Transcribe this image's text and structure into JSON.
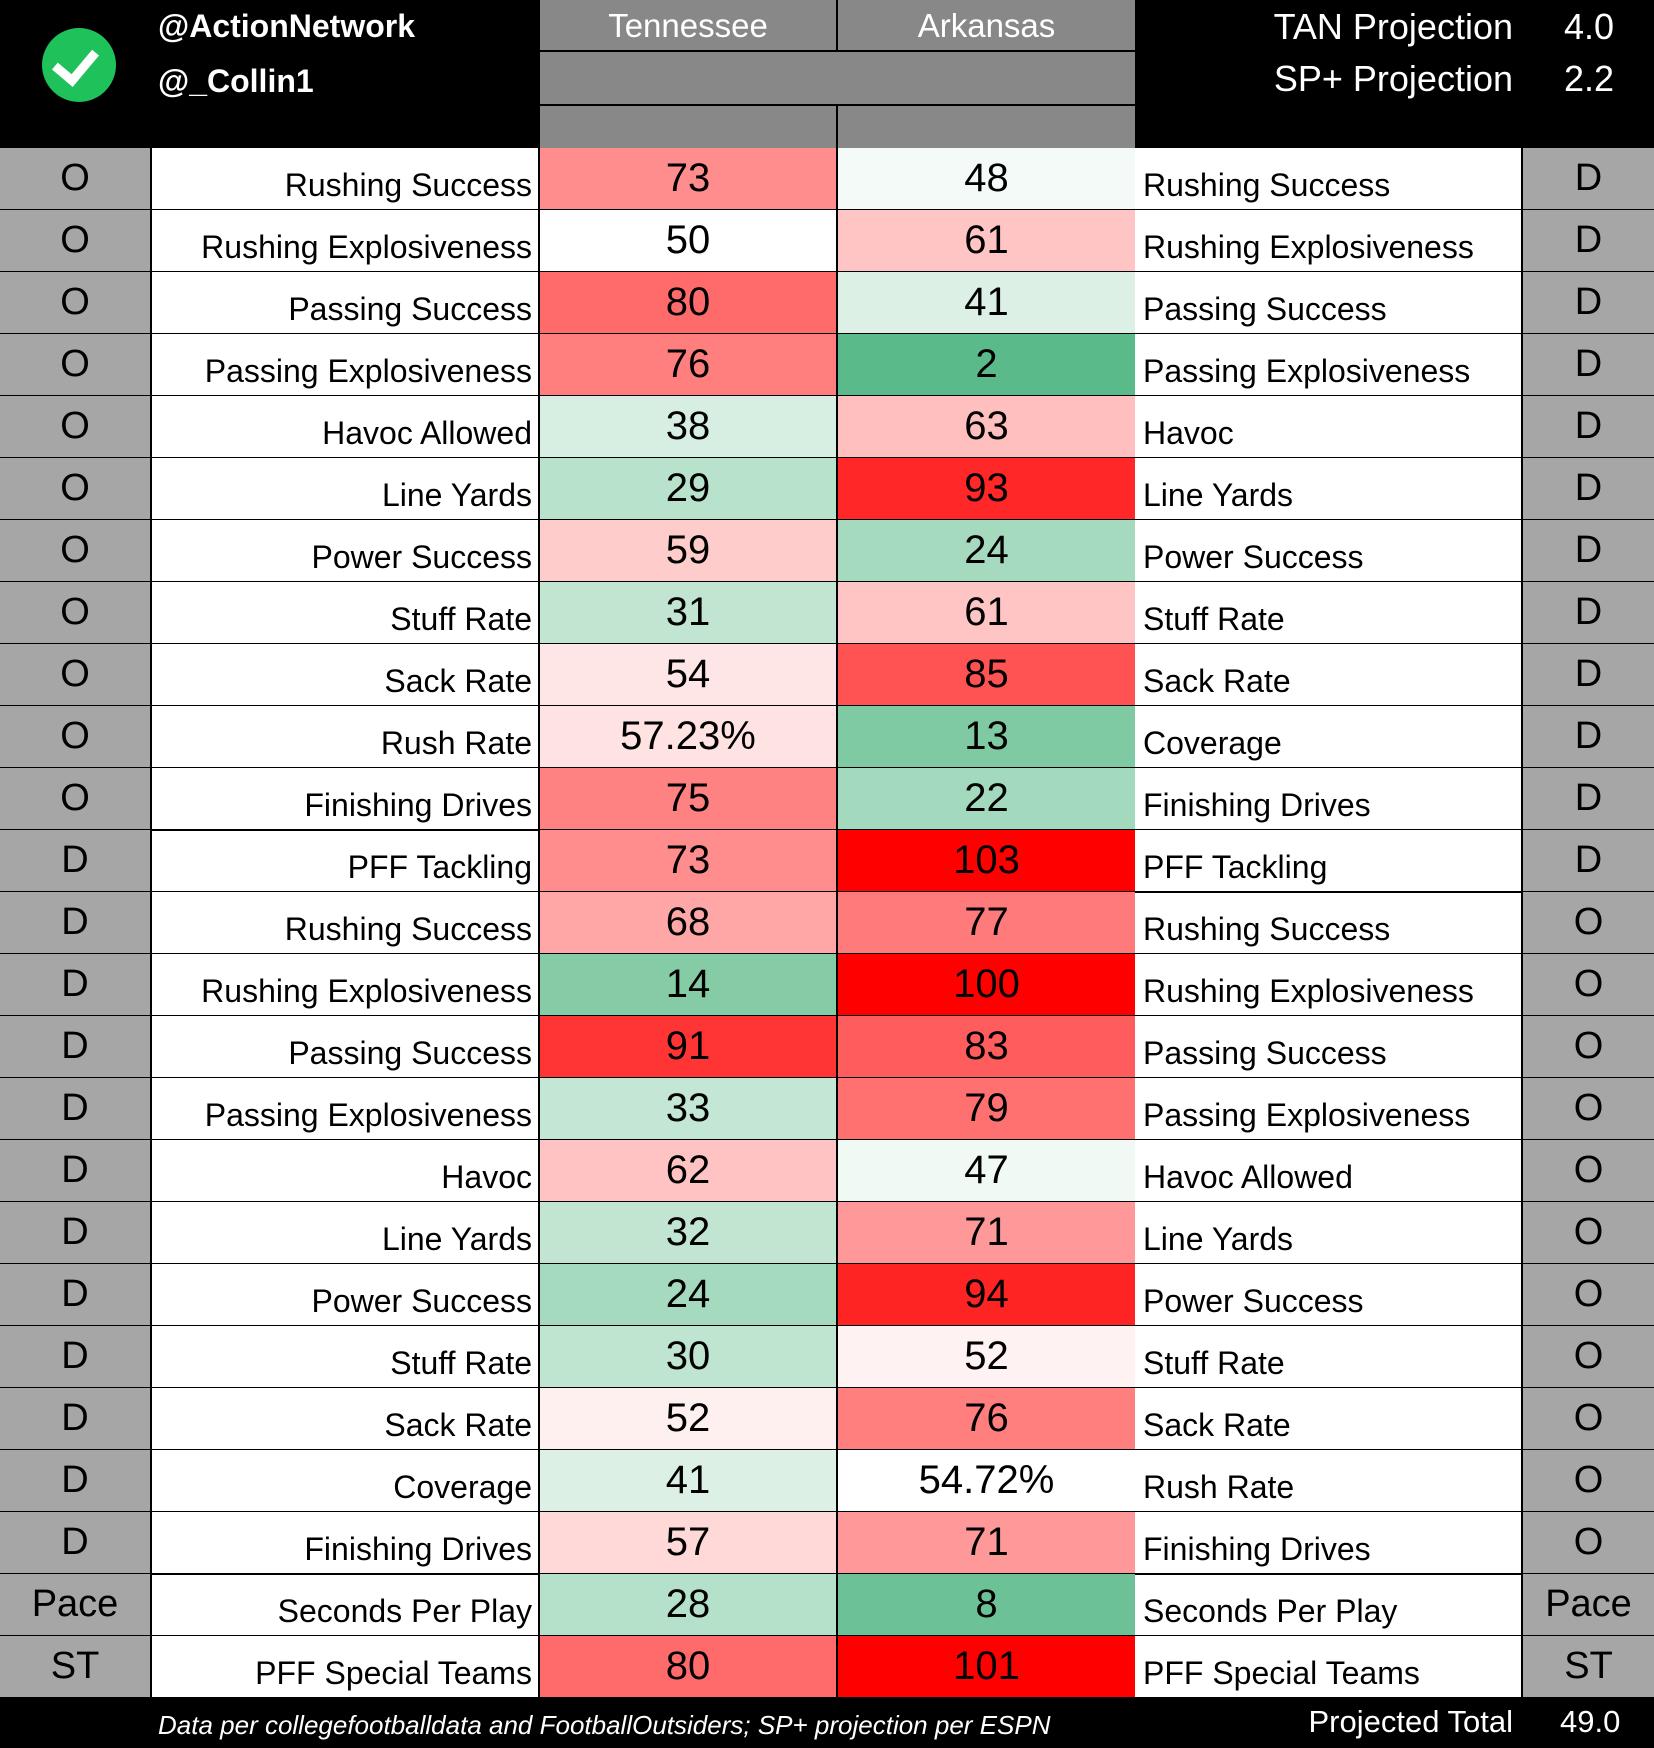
{
  "header": {
    "handles": [
      "@ActionNetwork",
      "@_Collin1"
    ],
    "team_left": "Tennessee",
    "team_right": "Arkansas",
    "projections": [
      {
        "label": "TAN Projection",
        "value": "4.0"
      },
      {
        "label": "SP+ Projection",
        "value": "2.2"
      }
    ]
  },
  "rows": [
    {
      "ls": "O",
      "ll": "Rushing Success",
      "tv": "73",
      "tc": "#ff8d8d",
      "av": "48",
      "ac": "#f4faf7",
      "rl": "Rushing Success",
      "rs": "D"
    },
    {
      "ls": "O",
      "ll": "Rushing Explosiveness",
      "tv": "50",
      "tc": "#ffffff",
      "av": "61",
      "ac": "#ffc5c5",
      "rl": "Rushing Explosiveness",
      "rs": "D"
    },
    {
      "ls": "O",
      "ll": "Passing Success",
      "tv": "80",
      "tc": "#ff6b6b",
      "av": "41",
      "ac": "#ddf0e6",
      "rl": "Passing Success",
      "rs": "D"
    },
    {
      "ls": "O",
      "ll": "Passing Explosiveness",
      "tv": "76",
      "tc": "#ff7e7e",
      "av": "2",
      "ac": "#5aba8a",
      "rl": "Passing Explosiveness",
      "rs": "D"
    },
    {
      "ls": "O",
      "ll": "Havoc Allowed",
      "tv": "38",
      "tc": "#d7efe2",
      "av": "63",
      "ac": "#ffbfbf",
      "rl": "Havoc",
      "rs": "D"
    },
    {
      "ls": "O",
      "ll": "Line Yards",
      "tv": "29",
      "tc": "#b8e2cc",
      "av": "93",
      "ac": "#ff2727",
      "rl": "Line Yards",
      "rs": "D"
    },
    {
      "ls": "O",
      "ll": "Power Success",
      "tv": "59",
      "tc": "#ffcccc",
      "av": "24",
      "ac": "#a6dabe",
      "rl": "Power Success",
      "rs": "D"
    },
    {
      "ls": "O",
      "ll": "Stuff Rate",
      "tv": "31",
      "tc": "#c2e5d2",
      "av": "61",
      "ac": "#ffc5c5",
      "rl": "Stuff Rate",
      "rs": "D"
    },
    {
      "ls": "O",
      "ll": "Sack Rate",
      "tv": "54",
      "tc": "#ffe6e6",
      "av": "85",
      "ac": "#ff5252",
      "rl": "Sack Rate",
      "rs": "D"
    },
    {
      "ls": "O",
      "ll": "Rush Rate",
      "tv": "57.23%",
      "tc": "#ffe3e3",
      "av": "13",
      "ac": "#7fcaa3",
      "rl": "Coverage",
      "rs": "D"
    },
    {
      "ls": "O",
      "ll": "Finishing Drives",
      "tv": "75",
      "tc": "#ff8282",
      "av": "22",
      "ac": "#a3d9bc",
      "rl": "Finishing Drives",
      "rs": "D"
    },
    {
      "ls": "D",
      "ll": "PFF Tackling",
      "tv": "73",
      "tc": "#ff8d8d",
      "av": "103",
      "ac": "#ff0000",
      "rl": "PFF Tackling",
      "rs": "D"
    },
    {
      "ls": "D",
      "ll": "Rushing Success",
      "tv": "68",
      "tc": "#ffa6a6",
      "av": "77",
      "ac": "#ff7a7a",
      "rl": "Rushing Success",
      "rs": "O"
    },
    {
      "ls": "D",
      "ll": "Rushing Explosiveness",
      "tv": "14",
      "tc": "#85cca6",
      "av": "100",
      "ac": "#ff0000",
      "rl": "Rushing Explosiveness",
      "rs": "O"
    },
    {
      "ls": "D",
      "ll": "Passing Success",
      "tv": "91",
      "tc": "#ff3434",
      "av": "83",
      "ac": "#ff5d5d",
      "rl": "Passing Success",
      "rs": "O"
    },
    {
      "ls": "D",
      "ll": "Passing Explosiveness",
      "tv": "33",
      "tc": "#c4e6d4",
      "av": "79",
      "ac": "#ff7171",
      "rl": "Passing Explosiveness",
      "rs": "O"
    },
    {
      "ls": "D",
      "ll": "Havoc",
      "tv": "62",
      "tc": "#ffc3c3",
      "av": "47",
      "ac": "#f0f9f4",
      "rl": "Havoc Allowed",
      "rs": "O"
    },
    {
      "ls": "D",
      "ll": "Line Yards",
      "tv": "32",
      "tc": "#c2e5d2",
      "av": "71",
      "ac": "#ff9898",
      "rl": "Line Yards",
      "rs": "O"
    },
    {
      "ls": "D",
      "ll": "Power Success",
      "tv": "24",
      "tc": "#a6dabe",
      "av": "94",
      "ac": "#ff2424",
      "rl": "Power Success",
      "rs": "O"
    },
    {
      "ls": "D",
      "ll": "Stuff Rate",
      "tv": "30",
      "tc": "#bfe4d0",
      "av": "52",
      "ac": "#fff2f2",
      "rl": "Stuff Rate",
      "rs": "O"
    },
    {
      "ls": "D",
      "ll": "Sack Rate",
      "tv": "52",
      "tc": "#fff0f0",
      "av": "76",
      "ac": "#ff7e7e",
      "rl": "Sack Rate",
      "rs": "O"
    },
    {
      "ls": "D",
      "ll": "Coverage",
      "tv": "41",
      "tc": "#ddf0e6",
      "av": "54.72%",
      "ac": "#ffffff",
      "rl": "Rush Rate",
      "rs": "O"
    },
    {
      "ls": "D",
      "ll": "Finishing Drives",
      "tv": "57",
      "tc": "#ffd8d8",
      "av": "71",
      "ac": "#ff9898",
      "rl": "Finishing Drives",
      "rs": "O"
    },
    {
      "ls": "Pace",
      "ll": "Seconds Per Play",
      "tv": "28",
      "tc": "#b5e0c9",
      "av": "8",
      "ac": "#6cc296",
      "rl": "Seconds Per Play",
      "rs": "Pace"
    },
    {
      "ls": "ST",
      "ll": "PFF Special Teams",
      "tv": "80",
      "tc": "#ff6b6b",
      "av": "101",
      "ac": "#ff0000",
      "rl": "PFF Special Teams",
      "rs": "ST"
    }
  ],
  "footer": {
    "source": "Data per collegefootballdata and FootballOutsiders; SP+ projection per ESPN",
    "total_label": "Projected Total",
    "total_value": "49.0"
  }
}
